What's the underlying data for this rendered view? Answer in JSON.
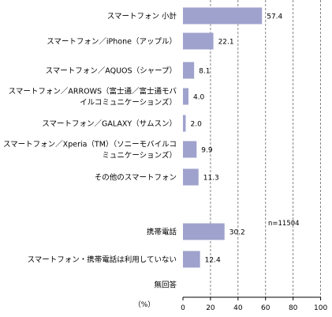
{
  "chart_data": {
    "type": "bar",
    "orientation": "horizontal",
    "categories": [
      [
        "スマートフォン 小計"
      ],
      [
        "スマートフォン／iPhone（アップル）"
      ],
      [
        "スマートフォン／AQUOS（シャープ）"
      ],
      [
        "スマートフォン／ARROWS（富士通／富士通モバ",
        "イルコミュニケーションズ）"
      ],
      [
        "スマートフォン／GALAXY（サムスン）"
      ],
      [
        "スマートフォン／Xperia（TM）（ソニーモバイルコ",
        "ミュニケーションズ）"
      ],
      [
        "その他のスマートフォン"
      ],
      [
        ""
      ],
      [
        "携帯電話"
      ],
      [
        "スマートフォン・携帯電話は利用していない"
      ],
      [
        "無回答"
      ]
    ],
    "values": [
      57.4,
      22.1,
      8.1,
      4.0,
      2.0,
      9.9,
      11.3,
      null,
      30.2,
      12.4,
      null
    ],
    "value_labels": [
      "57.4",
      "22.1",
      "8.1",
      "4.0",
      "2.0",
      "9.9",
      "11.3",
      "",
      "30.2",
      "12.4",
      ""
    ],
    "xlim": [
      0,
      100
    ],
    "xticks": [
      "0",
      "20",
      "40",
      "60",
      "80",
      "100"
    ],
    "xlabel": "（%）",
    "annotation": "n=11504",
    "grid": "vertical dashed",
    "bar_color": "#9fa2cc"
  }
}
